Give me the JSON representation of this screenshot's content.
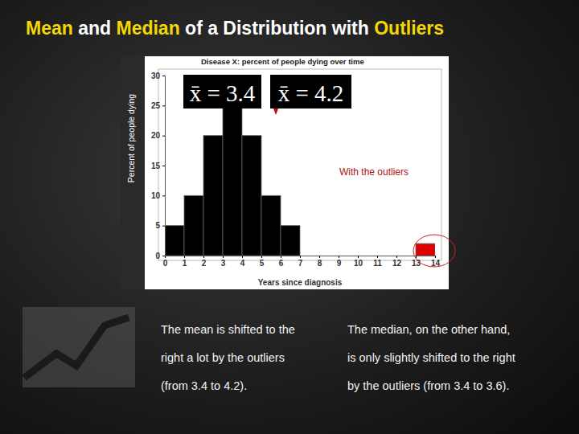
{
  "slide": {
    "title": [
      {
        "text": "Mean",
        "highlight": true
      },
      {
        "text": "and",
        "highlight": false
      },
      {
        "text": "Median",
        "highlight": true
      },
      {
        "text": "of a Distribution with",
        "highlight": false
      },
      {
        "text": "Outliers",
        "highlight": true
      }
    ],
    "notes": [
      [
        "The mean is shifted to the",
        "right a lot by the outliers",
        "(from 3.4 to 4.2)."
      ],
      [
        "The median, on the other hand,",
        "is only slightly shifted to the right",
        "by the outliers (from 3.4 to 3.6)."
      ]
    ]
  },
  "chart_data": {
    "type": "histogram",
    "title": "Disease X: percent of people dying over time",
    "x_label": "Years since diagnosis",
    "y_label": "Percent of people dying",
    "bins": [
      0,
      1,
      2,
      3,
      4,
      5,
      6,
      7,
      8,
      9,
      10,
      11,
      12,
      13,
      14
    ],
    "values": [
      5,
      10,
      20,
      30,
      20,
      10,
      5,
      0,
      0,
      0,
      0,
      0,
      0,
      2
    ],
    "colors": [
      "#000000",
      "#000000",
      "#000000",
      "#000000",
      "#000000",
      "#000000",
      "#000000",
      "#000000",
      "#000000",
      "#000000",
      "#000000",
      "#000000",
      "#000000",
      "#dd0000"
    ],
    "xlim": [
      0,
      14
    ],
    "ylim": [
      0,
      30
    ],
    "xticks": [
      0,
      1,
      2,
      3,
      4,
      5,
      6,
      7,
      8,
      9,
      10,
      11,
      12,
      13,
      14
    ],
    "yticks": [
      0,
      5,
      10,
      15,
      20,
      25,
      30
    ],
    "annotations": [
      "x̄ = 3.4",
      "x̄ = 4.2",
      "With the outliers"
    ]
  }
}
